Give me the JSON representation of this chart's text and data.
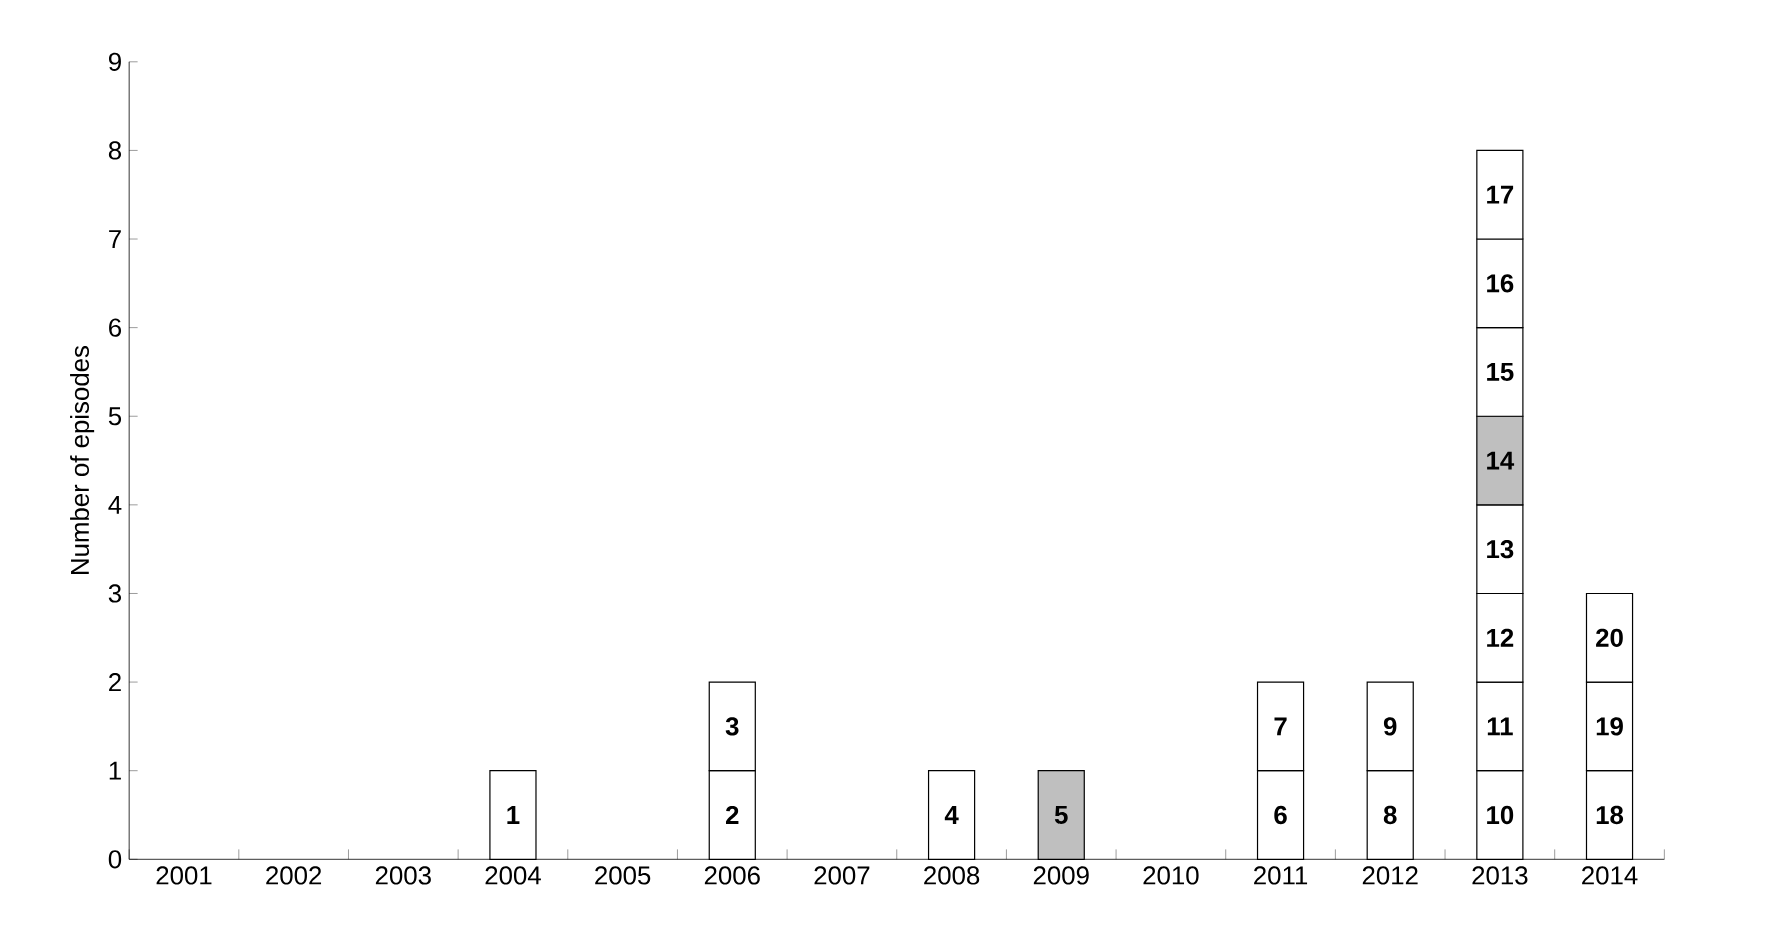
{
  "chart_data": {
    "type": "bar",
    "stacked": true,
    "ylabel": "Number of episodes",
    "categories": [
      "2001",
      "2002",
      "2003",
      "2004",
      "2005",
      "2006",
      "2007",
      "2008",
      "2009",
      "2010",
      "2011",
      "2012",
      "2013",
      "2014"
    ],
    "ylim": [
      0,
      9
    ],
    "yticks": [
      0,
      1,
      2,
      3,
      4,
      5,
      6,
      7,
      8,
      9
    ],
    "series": [
      {
        "values": [
          null,
          null,
          null,
          1,
          null,
          1,
          null,
          1,
          1,
          null,
          1,
          1,
          1,
          1
        ],
        "colors": [
          null,
          null,
          null,
          "#ffffff",
          null,
          "#ffffff",
          null,
          "#ffffff",
          "#bfbfbf",
          null,
          "#ffffff",
          "#ffffff",
          "#ffffff",
          "#ffffff"
        ]
      },
      {
        "color": "#ffffff",
        "values": [
          null,
          null,
          null,
          null,
          null,
          1,
          null,
          null,
          null,
          null,
          1,
          1,
          1,
          1
        ]
      },
      {
        "color": "#ffffff",
        "values": [
          null,
          null,
          null,
          null,
          null,
          null,
          null,
          null,
          null,
          null,
          null,
          null,
          1,
          1
        ]
      },
      {
        "color": "#ffffff",
        "values": [
          null,
          null,
          null,
          null,
          null,
          null,
          null,
          null,
          null,
          null,
          null,
          null,
          1,
          null
        ]
      },
      {
        "color": "#bfbfbf",
        "values": [
          null,
          null,
          null,
          null,
          null,
          null,
          null,
          null,
          null,
          null,
          null,
          null,
          1,
          null
        ]
      },
      {
        "color": "#ffffff",
        "values": [
          null,
          null,
          null,
          null,
          null,
          null,
          null,
          null,
          null,
          null,
          null,
          null,
          1,
          null
        ]
      },
      {
        "color": "#ffffff",
        "values": [
          null,
          null,
          null,
          null,
          null,
          null,
          null,
          null,
          null,
          null,
          null,
          null,
          1,
          null
        ]
      },
      {
        "color": "#ffffff",
        "values": [
          null,
          null,
          null,
          null,
          null,
          null,
          null,
          null,
          null,
          null,
          null,
          null,
          1,
          null
        ]
      }
    ],
    "annotations": [
      {
        "text": "1",
        "x": "2004",
        "y": 1
      },
      {
        "text": "2",
        "x": "2006",
        "y": 1
      },
      {
        "text": "3",
        "x": "2006",
        "y": 2
      },
      {
        "text": "4",
        "x": "2008",
        "y": 1
      },
      {
        "text": "5",
        "x": "2009",
        "y": 1
      },
      {
        "text": "6",
        "x": "2011",
        "y": 1
      },
      {
        "text": "7",
        "x": "2011",
        "y": 2
      },
      {
        "text": "8",
        "x": "2012",
        "y": 1
      },
      {
        "text": "9",
        "x": "2012",
        "y": 2
      },
      {
        "text": "10",
        "x": "2013",
        "y": 1
      },
      {
        "text": "11",
        "x": "2013",
        "y": 2
      },
      {
        "text": "12",
        "x": "2013",
        "y": 3
      },
      {
        "text": "13",
        "x": "2013",
        "y": 4
      },
      {
        "text": "14",
        "x": "2013",
        "y": 5
      },
      {
        "text": "15",
        "x": "2013",
        "y": 6
      },
      {
        "text": "16",
        "x": "2013",
        "y": 7
      },
      {
        "text": "17",
        "x": "2013",
        "y": 8
      },
      {
        "text": "18",
        "x": "2014",
        "y": 1
      },
      {
        "text": "19",
        "x": "2014",
        "y": 2
      },
      {
        "text": "20",
        "x": "2014",
        "y": 3
      }
    ]
  }
}
